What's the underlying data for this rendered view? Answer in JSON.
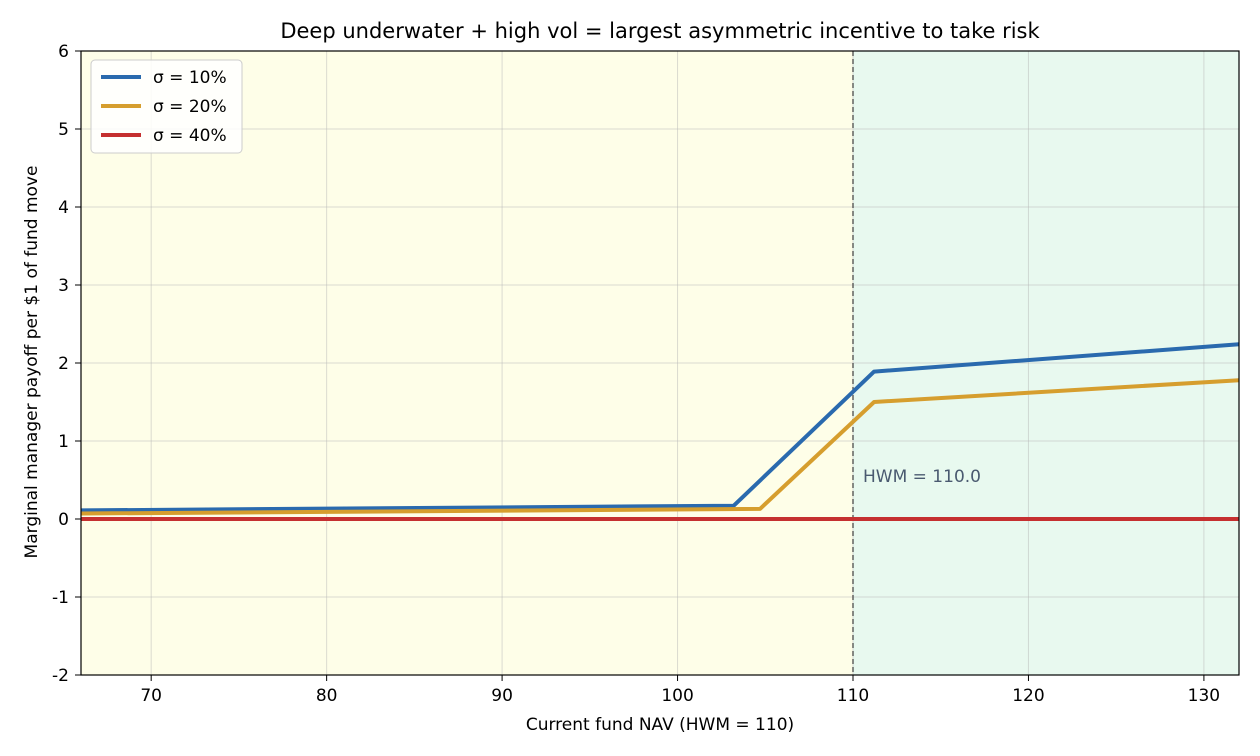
{
  "chart_data": {
    "type": "line",
    "title": "Deep underwater + high vol = largest asymmetric incentive to take risk",
    "xlabel": "Current fund NAV (HWM = 110)",
    "ylabel": "Marginal manager payoff per $1 of fund move",
    "xlim": [
      66,
      132
    ],
    "ylim": [
      -2,
      6
    ],
    "xticks": [
      70,
      80,
      90,
      100,
      110,
      120,
      130
    ],
    "yticks": [
      -2,
      -1,
      0,
      1,
      2,
      3,
      4,
      5,
      6
    ],
    "grid": true,
    "legend_position": "top-left",
    "hwm": 110,
    "hwm_label": "HWM = 110.0",
    "regions": [
      {
        "x_from": 66,
        "x_to": 110,
        "color": "#fefee8"
      },
      {
        "x_from": 110,
        "x_to": 132,
        "color": "#e8f9ef"
      }
    ],
    "series": [
      {
        "name": "σ = 10%",
        "color": "#2a6aae",
        "points": [
          [
            66,
            0.11
          ],
          [
            103.2,
            0.17
          ],
          [
            111.2,
            1.89
          ],
          [
            132,
            2.24
          ]
        ]
      },
      {
        "name": "σ = 20%",
        "color": "#d69e2e",
        "points": [
          [
            66,
            0.07
          ],
          [
            104.7,
            0.13
          ],
          [
            111.2,
            1.5
          ],
          [
            132,
            1.78
          ]
        ]
      },
      {
        "name": "σ = 40%",
        "color": "#c53030",
        "points": [
          [
            66,
            0.0
          ],
          [
            132,
            0.0
          ]
        ]
      }
    ]
  }
}
